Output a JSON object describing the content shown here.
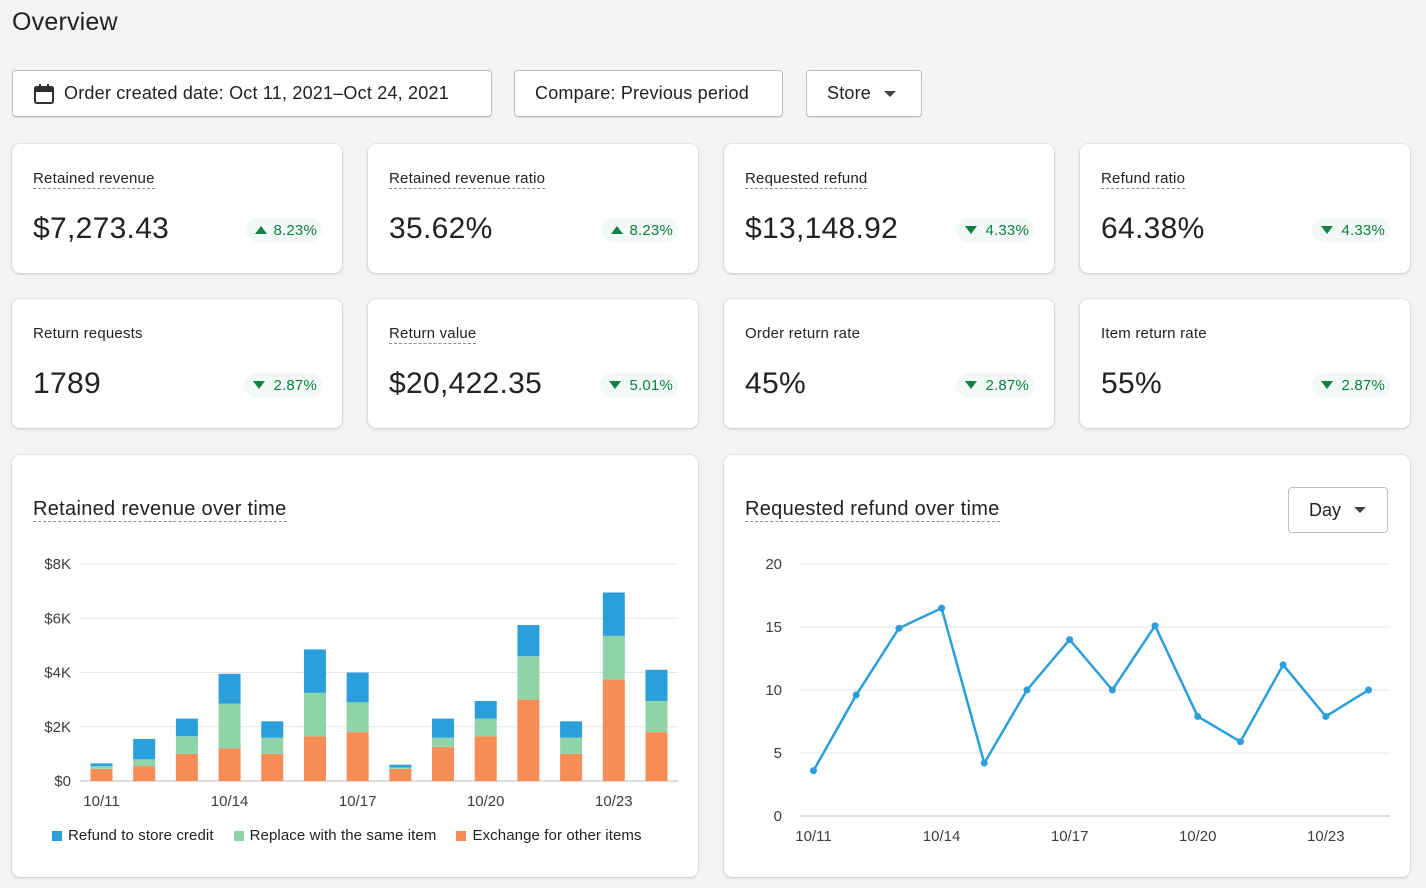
{
  "page_title": "Overview",
  "filters": {
    "date_label": "Order created date: Oct 11, 2021–Oct 24, 2021",
    "compare_label": "Compare: Previous period",
    "store_label": "Store"
  },
  "metrics": [
    {
      "label": "Retained revenue",
      "value": "$7,273.43",
      "change": "8.23%",
      "direction": "up",
      "underlined": true
    },
    {
      "label": "Retained revenue ratio",
      "value": "35.62%",
      "change": "8.23%",
      "direction": "up",
      "underlined": true
    },
    {
      "label": "Requested refund",
      "value": "$13,148.92",
      "change": "4.33%",
      "direction": "down",
      "underlined": true
    },
    {
      "label": "Refund ratio",
      "value": "64.38%",
      "change": "4.33%",
      "direction": "down",
      "underlined": true
    },
    {
      "label": "Return requests",
      "value": "1789",
      "change": "2.87%",
      "direction": "down",
      "underlined": false
    },
    {
      "label": "Return value",
      "value": "$20,422.35",
      "change": "5.01%",
      "direction": "down",
      "underlined": true
    },
    {
      "label": "Order return rate",
      "value": "45%",
      "change": "2.87%",
      "direction": "down",
      "underlined": false
    },
    {
      "label": "Item return rate",
      "value": "55%",
      "change": "2.87%",
      "direction": "down",
      "underlined": false
    }
  ],
  "colors": {
    "series_store_credit": "#2b9fdc",
    "series_replace": "#8fd3a8",
    "series_exchange": "#f88c56",
    "line": "#2b9fdc",
    "badge_text": "#108043"
  },
  "interval_selector": {
    "label": "Day"
  },
  "chart_data": [
    {
      "type": "bar",
      "stacked": true,
      "title": "Retained revenue over time",
      "categories": [
        "10/11",
        "10/12",
        "10/13",
        "10/14",
        "10/15",
        "10/16",
        "10/17",
        "10/18",
        "10/19",
        "10/20",
        "10/21",
        "10/22",
        "10/23",
        "10/24"
      ],
      "tick_labels": [
        "10/11",
        "10/14",
        "10/17",
        "10/20",
        "10/23"
      ],
      "tick_indices": [
        0,
        3,
        6,
        9,
        12
      ],
      "y_tick_labels": [
        "$0",
        "$2K",
        "$4K",
        "$6K",
        "$8K"
      ],
      "y_tick_values": [
        0,
        2000,
        4000,
        6000,
        8000
      ],
      "ylim": [
        0,
        8000
      ],
      "grid": true,
      "legend_position": "bottom-left",
      "series": [
        {
          "name": "Exchange for other items",
          "values": [
            450,
            550,
            1000,
            1200,
            1000,
            1650,
            1800,
            450,
            1250,
            1650,
            3000,
            1000,
            3750,
            1800
          ]
        },
        {
          "name": "Replace with the same item",
          "values": [
            100,
            250,
            650,
            1650,
            600,
            1600,
            1100,
            50,
            350,
            650,
            1600,
            600,
            1600,
            1150
          ]
        },
        {
          "name": "Refund to store credit",
          "values": [
            100,
            750,
            650,
            1100,
            600,
            1600,
            1100,
            100,
            700,
            650,
            1150,
            600,
            1600,
            1150
          ]
        }
      ]
    },
    {
      "type": "line",
      "title": "Requested refund over time",
      "x": [
        "10/11",
        "10/12",
        "10/13",
        "10/14",
        "10/15",
        "10/16",
        "10/17",
        "10/18",
        "10/19",
        "10/20",
        "10/21",
        "10/22",
        "10/23",
        "10/24"
      ],
      "tick_labels": [
        "10/11",
        "10/14",
        "10/17",
        "10/20",
        "10/23"
      ],
      "tick_indices": [
        0,
        3,
        6,
        9,
        12
      ],
      "y_tick_labels": [
        "0",
        "5",
        "10",
        "15",
        "20"
      ],
      "y_tick_values": [
        0,
        5,
        10,
        15,
        20
      ],
      "ylim": [
        0,
        20
      ],
      "grid": true,
      "series": [
        {
          "values": [
            3.6,
            9.6,
            14.9,
            16.5,
            4.2,
            10,
            14,
            10,
            15.1,
            7.9,
            5.9,
            12,
            7.9,
            10
          ]
        }
      ]
    }
  ]
}
